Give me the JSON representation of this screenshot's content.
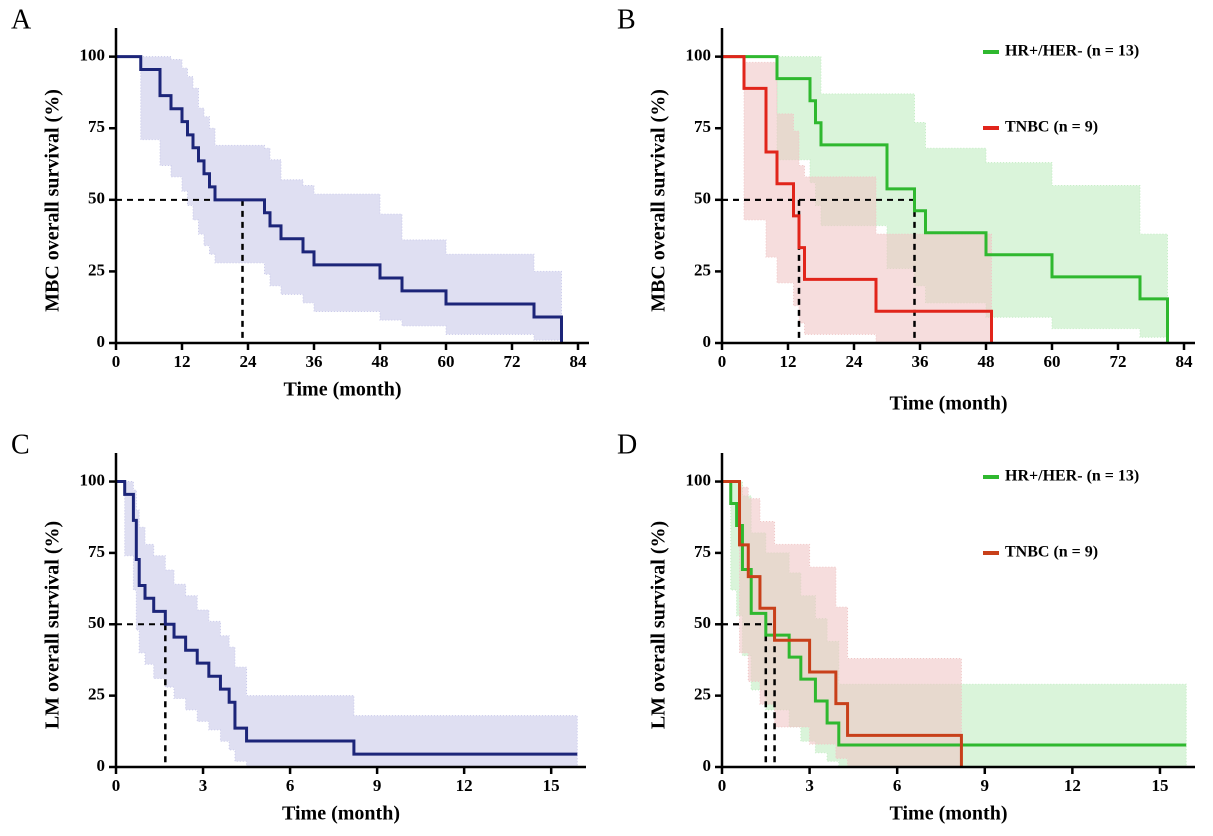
{
  "chart_data": [
    {
      "type": "survival",
      "panel": "A",
      "xlabel": "Time (month)",
      "ylabel": "MBC overall survival (%)",
      "xlim": [
        0,
        86
      ],
      "xticks": [
        0,
        12,
        24,
        36,
        48,
        60,
        72,
        84
      ],
      "ylim": [
        0,
        110
      ],
      "yticks": [
        0,
        25,
        50,
        75,
        100
      ],
      "series": [
        {
          "color": "#1c2579",
          "band_color": "#c9c9ea",
          "x": [
            0,
            4.5,
            8,
            10,
            12,
            13,
            14,
            15,
            16,
            17,
            18,
            27,
            28,
            30,
            34,
            36,
            48,
            52,
            60,
            76,
            81
          ],
          "values": [
            100,
            95.5,
            86.4,
            81.8,
            77.3,
            72.7,
            68.2,
            63.6,
            59.1,
            54.5,
            50,
            45.5,
            40.9,
            36.4,
            31.8,
            27.3,
            22.7,
            18.2,
            13.6,
            9.1,
            0
          ],
          "upper": [
            100,
            100,
            100,
            99,
            96,
            93,
            89,
            82,
            79,
            75,
            69,
            68,
            64,
            57,
            55,
            52,
            45,
            36,
            31,
            25,
            25
          ],
          "lower": [
            100,
            71,
            62,
            58,
            53,
            48,
            43,
            38,
            34,
            31,
            28,
            24,
            20,
            17,
            14,
            11,
            8,
            6,
            3,
            1,
            0
          ]
        }
      ],
      "median": {
        "level": 50,
        "times": [
          23
        ]
      }
    },
    {
      "type": "survival",
      "panel": "B",
      "xlabel": "Time (month)",
      "ylabel": "MBC overall survival (%)",
      "xlim": [
        0,
        86
      ],
      "xticks": [
        0,
        12,
        24,
        36,
        48,
        60,
        72,
        84
      ],
      "ylim": [
        0,
        110
      ],
      "yticks": [
        0,
        25,
        50,
        75,
        100
      ],
      "legend": "top-right",
      "series": [
        {
          "name": "HR+/HER- (n = 13)",
          "color": "#2fb82f",
          "band_color": "#c2ecc2",
          "x": [
            0,
            10,
            16,
            17,
            18,
            30,
            35,
            37,
            48,
            60,
            76,
            81
          ],
          "values": [
            100,
            92.3,
            84.6,
            76.9,
            69.2,
            53.8,
            46.2,
            38.5,
            30.8,
            23.1,
            15.4,
            0
          ],
          "upper": [
            100,
            100,
            100,
            100,
            87,
            87,
            77,
            68,
            63,
            55,
            38,
            38
          ],
          "lower": [
            100,
            64,
            56,
            48,
            41,
            26,
            20,
            14,
            9,
            5,
            2,
            0
          ]
        },
        {
          "name": "TNBC (n = 9)",
          "color": "#e1251b",
          "band_color": "#f0c6c6",
          "x": [
            0,
            4,
            8,
            10,
            13,
            14,
            15,
            28,
            49
          ],
          "values": [
            100,
            88.9,
            66.7,
            55.6,
            44.4,
            33.3,
            22.2,
            11.1,
            0
          ],
          "upper": [
            100,
            98,
            98,
            80,
            74,
            62,
            58,
            38,
            38
          ],
          "lower": [
            100,
            43,
            30,
            21,
            13,
            7,
            3,
            0,
            0
          ]
        }
      ],
      "median": {
        "level": 50,
        "times": [
          35,
          14
        ]
      }
    },
    {
      "type": "survival",
      "panel": "C",
      "xlabel": "Time (month)",
      "ylabel": "LM overall survival (%)",
      "xlim": [
        0,
        16.2
      ],
      "xticks": [
        0,
        3,
        6,
        9,
        12,
        15
      ],
      "ylim": [
        0,
        110
      ],
      "yticks": [
        0,
        25,
        50,
        75,
        100
      ],
      "series": [
        {
          "color": "#1c2579",
          "band_color": "#c9c9ea",
          "x": [
            0,
            0.3,
            0.6,
            0.7,
            0.8,
            1.0,
            1.3,
            1.7,
            2.0,
            2.4,
            2.8,
            3.2,
            3.6,
            3.9,
            4.1,
            4.5,
            8.2,
            15.9
          ],
          "values": [
            100,
            95.5,
            86.4,
            72.7,
            63.6,
            59.1,
            54.5,
            50,
            45.5,
            40.9,
            36.4,
            31.8,
            27.3,
            22.7,
            13.6,
            9.1,
            4.5,
            4.5
          ],
          "upper": [
            100,
            100,
            97,
            90,
            84,
            78,
            74,
            69,
            64,
            60,
            55,
            51,
            46,
            42,
            35,
            25,
            18,
            18
          ],
          "lower": [
            100,
            74,
            62,
            48,
            40,
            36,
            31,
            28,
            24,
            20,
            16,
            13,
            9,
            6,
            2,
            0,
            0,
            0
          ]
        }
      ],
      "median": {
        "level": 50,
        "times": [
          1.7
        ]
      }
    },
    {
      "type": "survival",
      "panel": "D",
      "xlabel": "Time (month)",
      "ylabel": "LM overall survival (%)",
      "xlim": [
        0,
        16.2
      ],
      "xticks": [
        0,
        3,
        6,
        9,
        12,
        15
      ],
      "ylim": [
        0,
        110
      ],
      "yticks": [
        0,
        25,
        50,
        75,
        100
      ],
      "legend": "top-right",
      "series": [
        {
          "name": "HR+/HER- (n = 13)",
          "color": "#2fb82f",
          "band_color": "#c2ecc2",
          "x": [
            0,
            0.3,
            0.5,
            0.7,
            1.0,
            1.5,
            2.3,
            2.7,
            3.2,
            3.6,
            4.0,
            15.9
          ],
          "values": [
            100,
            92.3,
            84.6,
            69.2,
            53.8,
            46.2,
            38.5,
            30.8,
            23.1,
            15.4,
            7.7,
            7.7
          ],
          "upper": [
            100,
            100,
            100,
            95,
            82,
            75,
            68,
            60,
            52,
            44,
            29,
            29
          ],
          "lower": [
            100,
            62,
            53,
            39,
            27,
            20,
            14,
            9,
            5,
            2,
            0,
            0
          ]
        },
        {
          "name": "TNBC (n = 9)",
          "color": "#c8401a",
          "band_color": "#f0c6c6",
          "x": [
            0,
            0.6,
            0.9,
            1.3,
            1.8,
            3.0,
            3.9,
            4.3,
            8.2
          ],
          "values": [
            100,
            77.8,
            66.7,
            55.6,
            44.4,
            33.3,
            22.2,
            11.1,
            0
          ],
          "upper": [
            100,
            98,
            94,
            86,
            78,
            70,
            56,
            38,
            38
          ],
          "lower": [
            100,
            40,
            30,
            22,
            14,
            8,
            3,
            0,
            0
          ]
        }
      ],
      "median": {
        "level": 50,
        "times": [
          1.5,
          1.8
        ]
      }
    }
  ]
}
